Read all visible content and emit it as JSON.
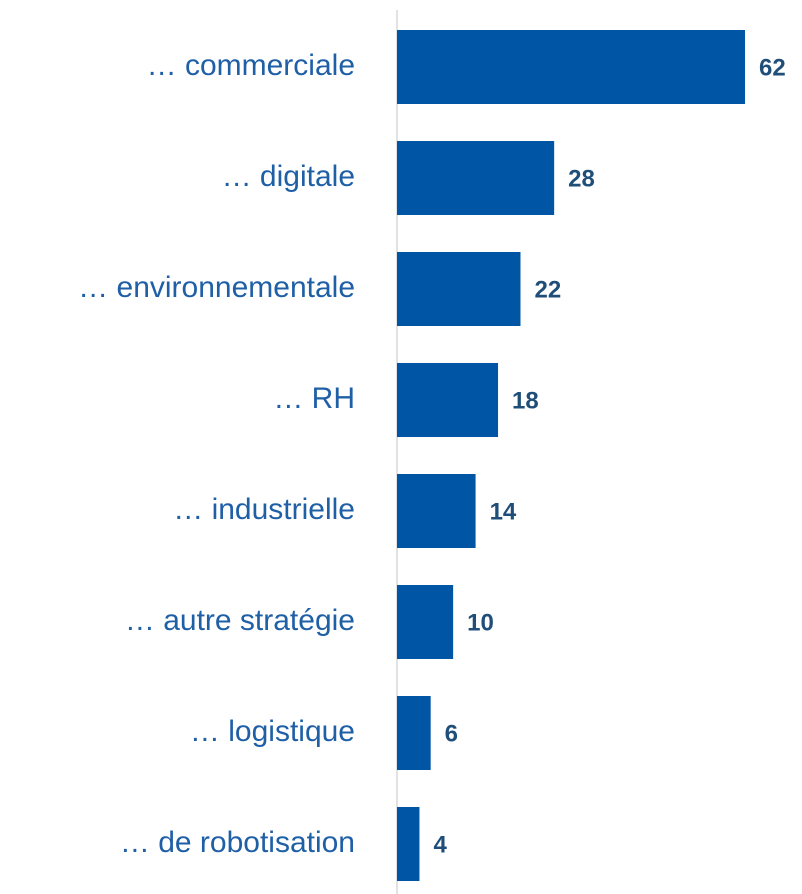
{
  "chart_data": {
    "type": "barh",
    "categories": [
      "… commerciale",
      "… digitale",
      "… environnementale",
      "… RH",
      "… industrielle",
      "… autre stratégie",
      "… logistique",
      "… de robotisation"
    ],
    "values": [
      62,
      28,
      22,
      18,
      14,
      10,
      6,
      4
    ],
    "color": "#0055a4"
  }
}
